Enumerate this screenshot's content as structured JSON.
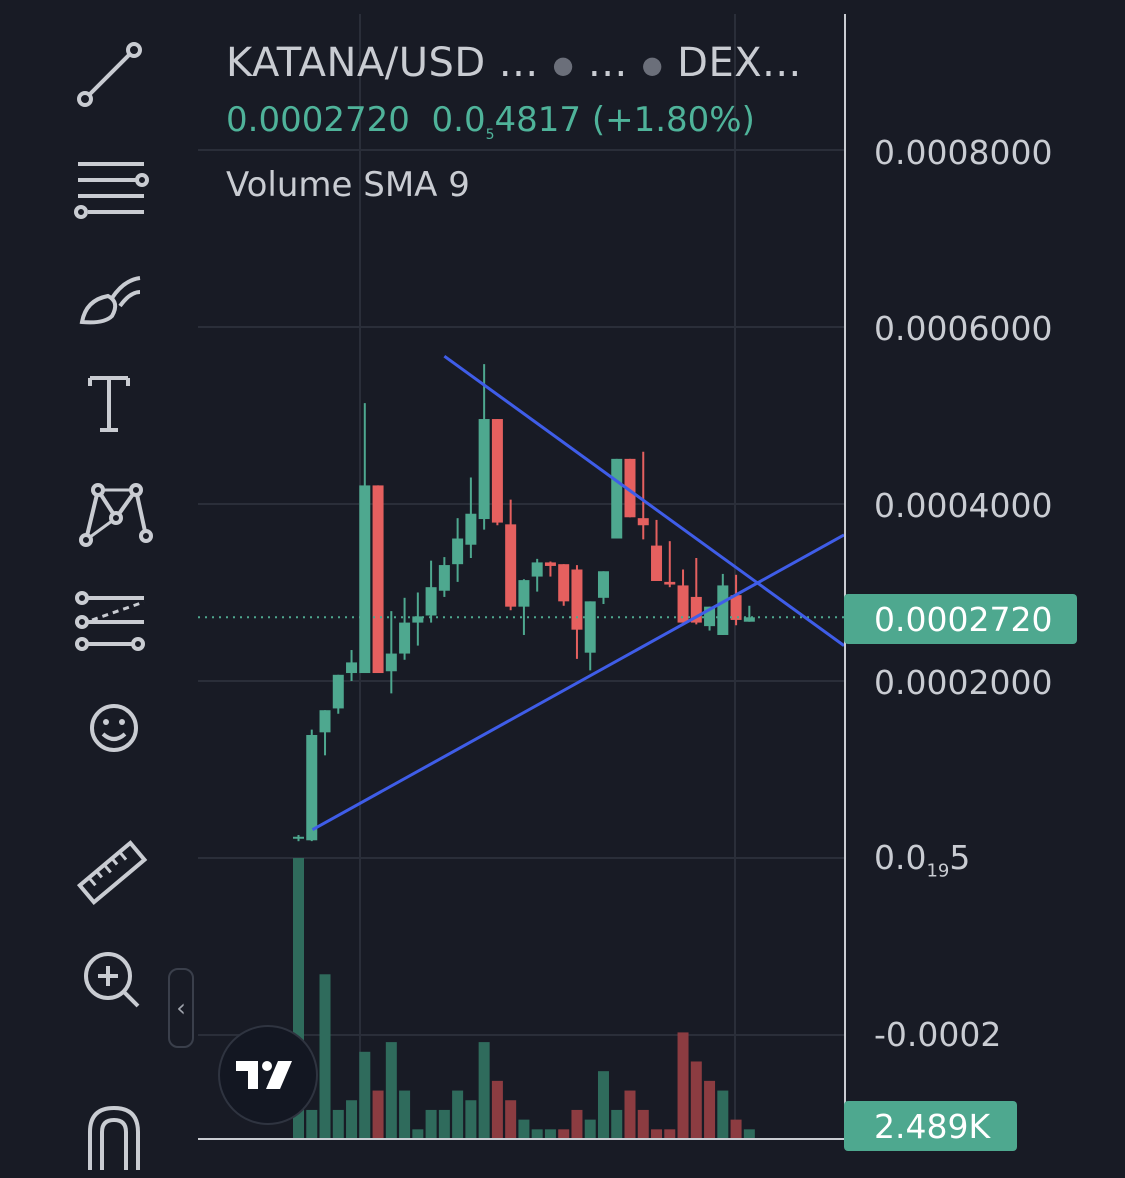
{
  "header": {
    "symbol": "KATANA/USD ...",
    "interval": "...",
    "exchange": "DEX...",
    "last_price": "0.0002720",
    "change_prefix": "0.0",
    "change_sub": "5",
    "change_rest": "4817",
    "change_pct": "(+1.80%)",
    "indicator": "Volume SMA 9"
  },
  "price_badge": "0.0002720",
  "volume_badge": "2.489K",
  "axis_labels": {
    "l1": "0.0008000",
    "l2": "0.0006000",
    "l3": "0.0004000",
    "l4": "0.0002000",
    "l5_prefix": "0.0",
    "l5_sub": "19",
    "l5_rest": "5",
    "l6": "-0.0002"
  },
  "toolbar": {
    "tools": [
      "trend-line-icon",
      "fib-retracement-icon",
      "brush-icon",
      "text-icon",
      "pattern-icon",
      "forecast-icon",
      "emoji-icon",
      "ruler-icon",
      "zoom-in-icon",
      "magnet-icon"
    ],
    "collapse_glyph": "‹"
  },
  "colors": {
    "up": "#4ea88f",
    "down": "#e5605f",
    "trendline": "#3f5de8",
    "background": "#181b25"
  },
  "chart_data": {
    "type": "candlestick",
    "symbol": "KATANA/USD",
    "ylim": [
      -0.00025,
      0.00088
    ],
    "price_ticks": [
      0.0008,
      0.0006,
      0.0004,
      0.0002,
      0.0,
      -0.0002
    ],
    "last_price": 0.000272,
    "candles": [
      {
        "o": 2.4e-05,
        "h": 2.6e-05,
        "l": 1.9e-05,
        "c": 2.4e-05
      },
      {
        "o": 2e-05,
        "h": 0.000145,
        "l": 1.9e-05,
        "c": 0.000139
      },
      {
        "o": 0.000142,
        "h": 0.000167,
        "l": 0.000116,
        "c": 0.000167
      },
      {
        "o": 0.000169,
        "h": 0.000207,
        "l": 0.000163,
        "c": 0.000207
      },
      {
        "o": 0.000209,
        "h": 0.000235,
        "l": 0.0002,
        "c": 0.000221
      },
      {
        "o": 0.000209,
        "h": 0.000514,
        "l": 0.000209,
        "c": 0.000421
      },
      {
        "o": 0.000421,
        "h": 0.000421,
        "l": 0.000209,
        "c": 0.000209
      },
      {
        "o": 0.000211,
        "h": 0.000279,
        "l": 0.000186,
        "c": 0.000231
      },
      {
        "o": 0.000231,
        "h": 0.000294,
        "l": 0.000224,
        "c": 0.000266
      },
      {
        "o": 0.000266,
        "h": 0.0003,
        "l": 0.00024,
        "c": 0.000273
      },
      {
        "o": 0.000274,
        "h": 0.000336,
        "l": 0.000266,
        "c": 0.000306
      },
      {
        "o": 0.000302,
        "h": 0.00034,
        "l": 0.000295,
        "c": 0.000331
      },
      {
        "o": 0.000332,
        "h": 0.000384,
        "l": 0.000312,
        "c": 0.000361
      },
      {
        "o": 0.000354,
        "h": 0.00043,
        "l": 0.000339,
        "c": 0.000389
      },
      {
        "o": 0.000383,
        "h": 0.000558,
        "l": 0.000371,
        "c": 0.000496
      },
      {
        "o": 0.000496,
        "h": 0.000496,
        "l": 0.000376,
        "c": 0.000379
      },
      {
        "o": 0.000377,
        "h": 0.000405,
        "l": 0.00028,
        "c": 0.000284
      },
      {
        "o": 0.000284,
        "h": 0.000315,
        "l": 0.000252,
        "c": 0.000314
      },
      {
        "o": 0.000318,
        "h": 0.000338,
        "l": 0.000301,
        "c": 0.000334
      },
      {
        "o": 0.000334,
        "h": 0.000335,
        "l": 0.000318,
        "c": 0.00033
      },
      {
        "o": 0.000332,
        "h": 0.000332,
        "l": 0.000285,
        "c": 0.00029
      },
      {
        "o": 0.000326,
        "h": 0.000331,
        "l": 0.000225,
        "c": 0.000258
      },
      {
        "o": 0.000232,
        "h": 0.00029,
        "l": 0.000212,
        "c": 0.00029
      },
      {
        "o": 0.000294,
        "h": 0.000324,
        "l": 0.000287,
        "c": 0.000324
      },
      {
        "o": 0.000361,
        "h": 0.000451,
        "l": 0.000361,
        "c": 0.000451
      },
      {
        "o": 0.000451,
        "h": 0.000451,
        "l": 0.000385,
        "c": 0.000385
      },
      {
        "o": 0.000384,
        "h": 0.000459,
        "l": 0.00036,
        "c": 0.000376
      },
      {
        "o": 0.000353,
        "h": 0.000382,
        "l": 0.000313,
        "c": 0.000313
      },
      {
        "o": 0.000312,
        "h": 0.000358,
        "l": 0.000306,
        "c": 0.000309
      },
      {
        "o": 0.000308,
        "h": 0.000326,
        "l": 0.000266,
        "c": 0.000266
      },
      {
        "o": 0.000295,
        "h": 0.000339,
        "l": 0.000264,
        "c": 0.000266
      },
      {
        "o": 0.000262,
        "h": 0.000284,
        "l": 0.000257,
        "c": 0.000284
      },
      {
        "o": 0.000252,
        "h": 0.000321,
        "l": 0.000252,
        "c": 0.000308
      },
      {
        "o": 0.000297,
        "h": 0.00032,
        "l": 0.000263,
        "c": 0.000269
      },
      {
        "o": 0.000267,
        "h": 0.000285,
        "l": 0.000267,
        "c": 0.000272
      }
    ],
    "volumes": [
      29,
      3,
      17,
      3,
      4,
      9,
      5,
      10,
      5,
      1,
      3,
      3,
      5,
      4,
      10,
      6,
      4,
      2,
      1,
      1,
      1,
      3,
      2,
      7,
      3,
      5,
      3,
      1,
      1,
      11,
      8,
      6,
      5,
      2,
      1
    ],
    "volume_directions": [
      "up",
      "up",
      "up",
      "up",
      "up",
      "up",
      "down",
      "up",
      "up",
      "up",
      "up",
      "up",
      "up",
      "up",
      "up",
      "down",
      "down",
      "up",
      "up",
      "up",
      "down",
      "down",
      "up",
      "up",
      "up",
      "down",
      "down",
      "down",
      "down",
      "down",
      "down",
      "down",
      "up",
      "down",
      "up"
    ],
    "volume_last": "2.489K",
    "trendlines": [
      {
        "name": "upper",
        "from": {
          "bar": 11,
          "price": 0.000567
        },
        "to": {
          "bar": "beyond-right",
          "price": 0.00024
        }
      },
      {
        "name": "lower",
        "from": {
          "bar": 0,
          "price": 3.2e-05
        },
        "to": {
          "bar": "beyond-right",
          "price": 0.000365
        }
      }
    ]
  }
}
